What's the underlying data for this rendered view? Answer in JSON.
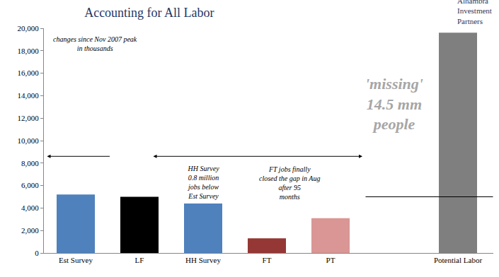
{
  "chart_data": {
    "type": "bar",
    "title": "Accounting for All Labor",
    "categories": [
      "Est Survey",
      "LF",
      "HH Survey",
      "FT",
      "PT",
      null,
      "Potential Labor"
    ],
    "values": [
      5200,
      5000,
      4400,
      1300,
      3100,
      null,
      19600
    ],
    "colors": [
      "#4f81bd",
      "#000000",
      "#4f81bd",
      "#953735",
      "#d99694",
      null,
      "#7f7f7f"
    ],
    "ylim": [
      0,
      20000
    ],
    "yticks": [
      0,
      {
        "value": 2000,
        "label": "2,000"
      },
      {
        "value": 4000,
        "label": "4,000"
      },
      {
        "value": 6000,
        "label": "6,000"
      },
      {
        "value": 8000,
        "label": "8,000"
      },
      {
        "value": 10000,
        "label": "10,000"
      },
      {
        "value": 12000,
        "label": "12,000"
      },
      {
        "value": 14000,
        "label": "14,000"
      },
      {
        "value": 16000,
        "label": "16,000"
      },
      {
        "value": 18000,
        "label": "18,000"
      },
      {
        "value": 20000,
        "label": "20,000"
      }
    ],
    "grid": false,
    "annotations": [
      {
        "text": [
          "changes since Nov 2007 peak",
          "in thousands"
        ]
      },
      {
        "text": [
          "HH Survey",
          "0.8 million",
          "jobs below",
          "Est Survey"
        ]
      },
      {
        "text": [
          "FT jobs finally",
          "closed the gap in Aug",
          "after 95",
          "months"
        ]
      },
      {
        "text": [
          "'missing'",
          "14.5 mm",
          "people"
        ]
      },
      {
        "text": [
          "Alhambra",
          "Investment",
          "Partners"
        ]
      }
    ]
  }
}
